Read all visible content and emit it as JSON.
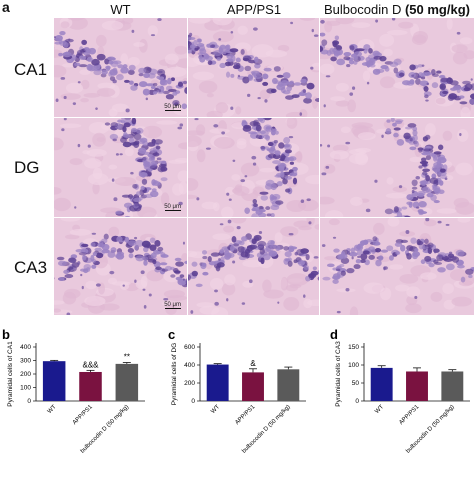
{
  "figure_a": {
    "letter": "a",
    "columns": [
      "WT",
      "APP/PS1",
      "Bulbocodin D"
    ],
    "column3_dose": "(50 mg/kg)",
    "rows": [
      "CA1",
      "DG",
      "CA3"
    ],
    "scale_label": "50 μm"
  },
  "chart_data": [
    {
      "type": "bar",
      "panel": "b",
      "ylabel": "Pyramidal cells of CA1",
      "categories": [
        "WT",
        "APP/PS1",
        "bulbocodin D (50 mg/kg)"
      ],
      "values": [
        295,
        215,
        275
      ],
      "errors": [
        6,
        12,
        10
      ],
      "annotations": [
        "",
        "&&&",
        "**"
      ],
      "ylim": [
        0,
        400
      ],
      "yticks": [
        "0",
        "100",
        "200",
        "300",
        "400"
      ],
      "colors": [
        "#1a1a8e",
        "#7a1240",
        "#5a5a5a"
      ]
    },
    {
      "type": "bar",
      "panel": "c",
      "ylabel": "Pyramidal cells of DG",
      "categories": [
        "WT",
        "APP/PS1",
        "bulbocodin D (50 mg/kg)"
      ],
      "values": [
        405,
        318,
        352
      ],
      "errors": [
        10,
        40,
        25
      ],
      "annotations": [
        "",
        "&",
        ""
      ],
      "ylim": [
        0,
        600
      ],
      "yticks": [
        "0",
        "200",
        "400",
        "600"
      ],
      "colors": [
        "#1a1a8e",
        "#7a1240",
        "#5a5a5a"
      ]
    },
    {
      "type": "bar",
      "panel": "d",
      "ylabel": "Pyramidal cells of CA3",
      "categories": [
        "WT",
        "APP/PS1",
        "bulbocodin D (50 mg/kg)"
      ],
      "values": [
        92,
        82,
        82
      ],
      "errors": [
        6,
        10,
        5
      ],
      "annotations": [
        "",
        "",
        ""
      ],
      "ylim": [
        0,
        150
      ],
      "yticks": [
        "0",
        "50",
        "100",
        "150"
      ],
      "colors": [
        "#1a1a8e",
        "#7a1240",
        "#5a5a5a"
      ]
    }
  ]
}
